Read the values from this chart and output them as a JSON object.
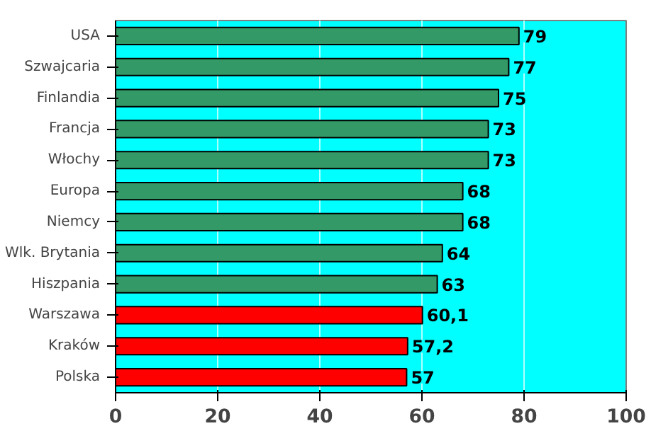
{
  "chart_data": {
    "type": "bar",
    "orientation": "horizontal",
    "categories": [
      "USA",
      "Szwajcaria",
      "Finlandia",
      "Francja",
      "Włochy",
      "Europa",
      "Niemcy",
      "Wlk. Brytania",
      "Hiszpania",
      "Warszawa",
      "Kraków",
      "Polska"
    ],
    "values": [
      79,
      77,
      75,
      73,
      73,
      68,
      68,
      64,
      63,
      60.1,
      57.2,
      57
    ],
    "value_labels": [
      "79",
      "77",
      "75",
      "73",
      "73",
      "68",
      "68",
      "64",
      "63",
      "60,1",
      "57,2",
      "57"
    ],
    "colors": [
      "#339966",
      "#339966",
      "#339966",
      "#339966",
      "#339966",
      "#339966",
      "#339966",
      "#339966",
      "#339966",
      "#ff0000",
      "#ff0000",
      "#ff0000"
    ],
    "xlim": [
      0,
      100
    ],
    "xticks": [
      0,
      20,
      40,
      60,
      80,
      100
    ],
    "grid": "x"
  }
}
